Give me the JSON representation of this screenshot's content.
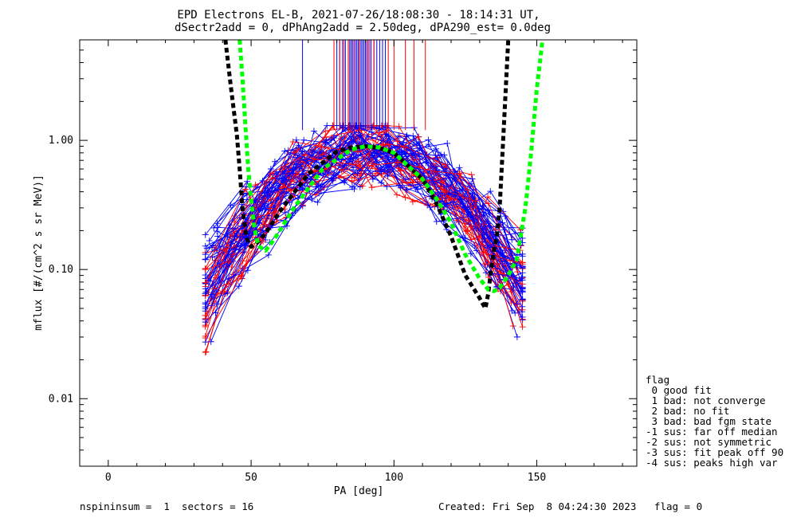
{
  "chart_data": {
    "type": "line",
    "title": "EPD Electrons EL-B, 2021-07-26/18:08:30 - 18:14:31 UT,",
    "subtitle": "dSectr2add = 0, dPhAng2add = 2.50deg, dPA290_est=   0.0deg",
    "xlabel": "PA [deg]",
    "ylabel": "mflux [#/(cm^2 s sr MeV)]",
    "xlim": [
      -10,
      185
    ],
    "ylim": [
      0.003,
      6
    ],
    "yscale": "log",
    "xticks": [
      0,
      50,
      100,
      150
    ],
    "xtick_labels": [
      "0",
      "50",
      "100",
      "150"
    ],
    "yticks": [
      0.01,
      0.1,
      1.0
    ],
    "ytick_labels": [
      "0.01",
      "0.10",
      "1.00"
    ],
    "colors": {
      "blue": "#0000ff",
      "red": "#ff0000",
      "black": "#000000",
      "green": "#00ff00"
    },
    "series": [
      {
        "color": "black",
        "style": "dashed",
        "x": [
          41,
          43,
          45,
          46,
          47,
          48,
          49,
          50,
          52,
          55,
          60,
          70,
          80,
          85,
          90,
          95,
          100,
          110,
          115,
          120,
          125,
          130,
          132,
          133,
          134,
          135,
          136,
          137,
          138,
          140
        ],
        "y": [
          6,
          2.5,
          1.1,
          0.6,
          0.3,
          0.2,
          0.16,
          0.15,
          0.16,
          0.19,
          0.28,
          0.55,
          0.82,
          0.88,
          0.9,
          0.87,
          0.8,
          0.5,
          0.32,
          0.18,
          0.09,
          0.06,
          0.05,
          0.065,
          0.1,
          0.14,
          0.18,
          0.3,
          0.8,
          6
        ]
      },
      {
        "color": "green",
        "style": "dashed",
        "x": [
          46,
          47,
          48,
          49,
          50,
          51,
          52,
          53,
          55,
          58,
          65,
          75,
          85,
          90,
          95,
          100,
          110,
          115,
          120,
          125,
          130,
          133,
          135,
          137,
          140,
          143,
          146,
          148,
          150,
          152
        ],
        "y": [
          6,
          3,
          1.3,
          0.6,
          0.35,
          0.22,
          0.17,
          0.15,
          0.14,
          0.17,
          0.3,
          0.6,
          0.85,
          0.9,
          0.88,
          0.8,
          0.5,
          0.35,
          0.23,
          0.13,
          0.085,
          0.07,
          0.068,
          0.072,
          0.09,
          0.12,
          0.3,
          0.8,
          2.5,
          6
        ]
      }
    ],
    "pa_markers": {
      "blue": [
        68,
        80,
        81,
        82,
        83,
        84,
        84.5,
        85,
        85.5,
        86,
        86.5,
        87,
        87.5,
        88,
        88.5,
        89,
        89.5,
        90,
        90.5,
        91,
        92,
        93,
        94,
        95,
        96,
        97
      ],
      "red": [
        79,
        81,
        82.5,
        84,
        86,
        88,
        90.5,
        91.5,
        93,
        98,
        100,
        104,
        107,
        111
      ]
    },
    "scatter_traces_note_free": true
  },
  "legend": {
    "title": "flag",
    "items": [
      " 0 good fit",
      " 1 bad: not converge",
      " 2 bad: no fit",
      " 3 bad: bad fgm state",
      "-1 sus: far off median",
      "-2 sus: not symmetric",
      "-3 sus: fit peak off 90",
      "-4 sus: peaks high var"
    ]
  },
  "footer": {
    "left": "nspininsum =  1  sectors = 16",
    "right": "Created: Fri Sep  8 04:24:30 2023   flag = 0"
  }
}
